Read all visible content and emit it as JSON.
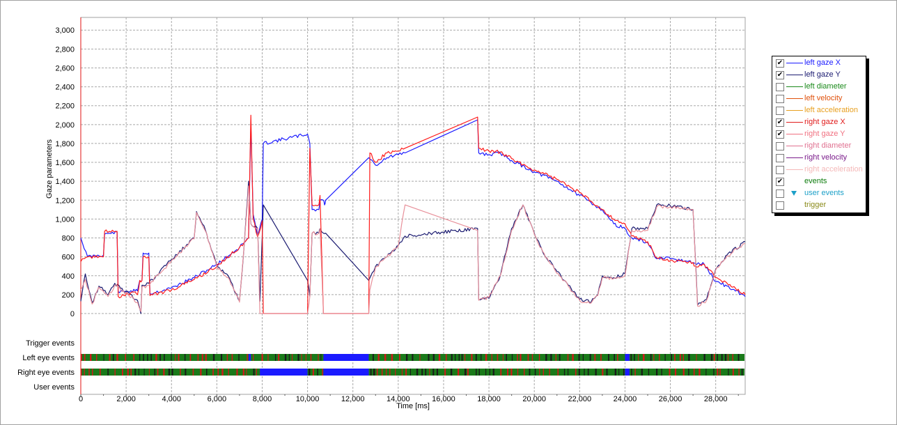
{
  "chart_data": {
    "type": "line",
    "xlabel": "Time [ms]",
    "ylabel": "Gaze parameters",
    "xlim": [
      0,
      29300
    ],
    "ylim": [
      -100,
      3100
    ],
    "grid": true,
    "legend_position": "right",
    "x_ticks": [
      "0",
      "2,000",
      "4,000",
      "6,000",
      "8,000",
      "10,000",
      "12,000",
      "14,000",
      "16,000",
      "18,000",
      "20,000",
      "22,000",
      "24,000",
      "26,000",
      "28,000"
    ],
    "y_ticks": [
      "0",
      "200",
      "400",
      "600",
      "800",
      "1,000",
      "1,200",
      "1,400",
      "1,600",
      "1,800",
      "2,000",
      "2,200",
      "2,400",
      "2,600",
      "2,800",
      "3,000"
    ],
    "event_rows": [
      "Trigger events",
      "Left eye events",
      "Right eye events",
      "User events"
    ],
    "series": [
      {
        "name": "left gaze X",
        "color": "#1a1aff",
        "points": [
          [
            0,
            800
          ],
          [
            300,
            600
          ],
          [
            1000,
            620
          ],
          [
            1050,
            840
          ],
          [
            1600,
            860
          ],
          [
            1650,
            230
          ],
          [
            2400,
            240
          ],
          [
            2500,
            240
          ],
          [
            2600,
            350
          ],
          [
            2700,
            350
          ],
          [
            2750,
            640
          ],
          [
            3000,
            640
          ],
          [
            3050,
            210
          ],
          [
            4000,
            270
          ],
          [
            5000,
            380
          ],
          [
            6000,
            520
          ],
          [
            7000,
            700
          ],
          [
            7400,
            800
          ],
          [
            7500,
            2000
          ],
          [
            7600,
            1050
          ],
          [
            7800,
            820
          ],
          [
            8000,
            1000
          ],
          [
            8050,
            1800
          ],
          [
            10000,
            1900
          ],
          [
            10100,
            1800
          ],
          [
            10200,
            1100
          ],
          [
            10500,
            1100
          ],
          [
            10550,
            1200
          ],
          [
            10700,
            1200
          ],
          [
            10750,
            1150
          ],
          [
            10800,
            1200
          ],
          [
            12700,
            1650
          ],
          [
            13000,
            1570
          ],
          [
            13500,
            1650
          ],
          [
            14000,
            1680
          ],
          [
            14300,
            1700
          ],
          [
            17500,
            2050
          ],
          [
            17550,
            1700
          ],
          [
            18000,
            1680
          ],
          [
            18500,
            1700
          ],
          [
            19000,
            1620
          ],
          [
            20000,
            1500
          ],
          [
            21000,
            1400
          ],
          [
            22000,
            1250
          ],
          [
            23000,
            1100
          ],
          [
            23500,
            950
          ],
          [
            24000,
            900
          ],
          [
            24100,
            850
          ],
          [
            24300,
            800
          ],
          [
            25000,
            750
          ],
          [
            25400,
            580
          ],
          [
            26000,
            580
          ],
          [
            27000,
            540
          ],
          [
            27100,
            530
          ],
          [
            27500,
            520
          ],
          [
            28000,
            340
          ],
          [
            28500,
            290
          ],
          [
            29300,
            180
          ]
        ]
      },
      {
        "name": "left gaze Y",
        "color": "#1a1a70",
        "points": [
          [
            0,
            130
          ],
          [
            200,
            420
          ],
          [
            500,
            110
          ],
          [
            800,
            290
          ],
          [
            1200,
            200
          ],
          [
            1500,
            320
          ],
          [
            2500,
            140
          ],
          [
            2650,
            0
          ],
          [
            2700,
            300
          ],
          [
            3000,
            320
          ],
          [
            4000,
            570
          ],
          [
            5000,
            800
          ],
          [
            5100,
            1080
          ],
          [
            5500,
            880
          ],
          [
            6000,
            500
          ],
          [
            6500,
            400
          ],
          [
            7000,
            130
          ],
          [
            7200,
            700
          ],
          [
            7400,
            1400
          ],
          [
            7500,
            950
          ],
          [
            7800,
            900
          ],
          [
            7900,
            130
          ],
          [
            8050,
            1150
          ],
          [
            10000,
            350
          ],
          [
            10100,
            180
          ],
          [
            10200,
            850
          ],
          [
            10500,
            850
          ],
          [
            10550,
            900
          ],
          [
            10700,
            850
          ],
          [
            10800,
            850
          ],
          [
            12700,
            350
          ],
          [
            13000,
            500
          ],
          [
            13500,
            600
          ],
          [
            14000,
            720
          ],
          [
            14300,
            820
          ],
          [
            17500,
            900
          ],
          [
            17550,
            150
          ],
          [
            18000,
            160
          ],
          [
            18500,
            400
          ],
          [
            19000,
            900
          ],
          [
            19500,
            1150
          ],
          [
            20000,
            850
          ],
          [
            20500,
            600
          ],
          [
            21500,
            300
          ],
          [
            22000,
            150
          ],
          [
            22500,
            120
          ],
          [
            22800,
            200
          ],
          [
            23000,
            400
          ],
          [
            23500,
            380
          ],
          [
            24000,
            420
          ],
          [
            24300,
            900
          ],
          [
            25000,
            900
          ],
          [
            25400,
            1150
          ],
          [
            26000,
            1140
          ],
          [
            27000,
            1100
          ],
          [
            27200,
            90
          ],
          [
            27600,
            150
          ],
          [
            28000,
            470
          ],
          [
            28500,
            620
          ],
          [
            29300,
            760
          ]
        ]
      },
      {
        "name": "right gaze X",
        "color": "#ff1a1a",
        "points": [
          [
            0,
            550
          ],
          [
            300,
            600
          ],
          [
            1000,
            600
          ],
          [
            1050,
            870
          ],
          [
            1600,
            870
          ],
          [
            1650,
            180
          ],
          [
            2400,
            230
          ],
          [
            2500,
            200
          ],
          [
            2600,
            350
          ],
          [
            2700,
            350
          ],
          [
            2750,
            600
          ],
          [
            3000,
            600
          ],
          [
            3050,
            190
          ],
          [
            4000,
            250
          ],
          [
            5000,
            360
          ],
          [
            6000,
            500
          ],
          [
            7000,
            700
          ],
          [
            7400,
            800
          ],
          [
            7500,
            2100
          ],
          [
            7600,
            1000
          ],
          [
            7800,
            810
          ],
          [
            8000,
            980
          ],
          [
            8050,
            0
          ],
          [
            10000,
            0
          ],
          [
            10100,
            1750
          ],
          [
            10200,
            1150
          ],
          [
            10500,
            1150
          ],
          [
            10550,
            1250
          ],
          [
            10700,
            0
          ],
          [
            12700,
            0
          ],
          [
            12750,
            1700
          ],
          [
            13000,
            1600
          ],
          [
            13500,
            1700
          ],
          [
            14000,
            1720
          ],
          [
            14300,
            1750
          ],
          [
            17500,
            2080
          ],
          [
            17550,
            1750
          ],
          [
            18000,
            1720
          ],
          [
            18500,
            1710
          ],
          [
            19000,
            1640
          ],
          [
            20000,
            1520
          ],
          [
            21000,
            1420
          ],
          [
            22000,
            1280
          ],
          [
            23000,
            1100
          ],
          [
            23500,
            1000
          ],
          [
            24000,
            950
          ],
          [
            24100,
            900
          ],
          [
            24300,
            820
          ],
          [
            25000,
            760
          ],
          [
            25400,
            590
          ],
          [
            26000,
            560
          ],
          [
            27000,
            540
          ],
          [
            27100,
            500
          ],
          [
            27500,
            520
          ],
          [
            28000,
            380
          ],
          [
            28500,
            320
          ],
          [
            29300,
            200
          ]
        ]
      },
      {
        "name": "right gaze Y",
        "color": "#e8909a",
        "points": [
          [
            0,
            250
          ],
          [
            200,
            360
          ],
          [
            500,
            100
          ],
          [
            800,
            280
          ],
          [
            1200,
            180
          ],
          [
            1500,
            300
          ],
          [
            2500,
            120
          ],
          [
            2650,
            20
          ],
          [
            2700,
            280
          ],
          [
            3000,
            300
          ],
          [
            4000,
            560
          ],
          [
            5000,
            790
          ],
          [
            5100,
            1070
          ],
          [
            5500,
            870
          ],
          [
            6000,
            490
          ],
          [
            6500,
            380
          ],
          [
            7000,
            120
          ],
          [
            7200,
            700
          ],
          [
            7400,
            1350
          ],
          [
            7500,
            950
          ],
          [
            7800,
            900
          ],
          [
            7900,
            0
          ],
          [
            10000,
            0
          ],
          [
            10100,
            180
          ],
          [
            10200,
            850
          ],
          [
            10500,
            850
          ],
          [
            10550,
            900
          ],
          [
            10700,
            0
          ],
          [
            12700,
            0
          ],
          [
            12750,
            250
          ],
          [
            13000,
            490
          ],
          [
            13500,
            600
          ],
          [
            14000,
            710
          ],
          [
            14300,
            1150
          ],
          [
            17500,
            880
          ],
          [
            17550,
            140
          ],
          [
            18000,
            170
          ],
          [
            18500,
            400
          ],
          [
            19000,
            880
          ],
          [
            19500,
            1150
          ],
          [
            20000,
            840
          ],
          [
            20500,
            590
          ],
          [
            21500,
            290
          ],
          [
            22000,
            140
          ],
          [
            22500,
            110
          ],
          [
            22800,
            190
          ],
          [
            23000,
            380
          ],
          [
            23500,
            370
          ],
          [
            24000,
            400
          ],
          [
            24300,
            880
          ],
          [
            25000,
            880
          ],
          [
            25400,
            1130
          ],
          [
            26000,
            1130
          ],
          [
            27000,
            1100
          ],
          [
            27200,
            80
          ],
          [
            27600,
            140
          ],
          [
            28000,
            460
          ],
          [
            28500,
            610
          ],
          [
            29300,
            740
          ]
        ]
      }
    ]
  },
  "legend": {
    "items": [
      {
        "label": "left gaze X",
        "color": "#1a1aff",
        "checked": true,
        "marker": "line"
      },
      {
        "label": "left gaze Y",
        "color": "#1a1a70",
        "checked": true,
        "marker": "line"
      },
      {
        "label": "left diameter",
        "color": "#1a8a1a",
        "checked": false,
        "marker": "line"
      },
      {
        "label": "left velocity",
        "color": "#e0500a",
        "checked": false,
        "marker": "line"
      },
      {
        "label": "left acceleration",
        "color": "#e8a020",
        "checked": false,
        "marker": "line"
      },
      {
        "label": "right gaze X",
        "color": "#e01a1a",
        "checked": true,
        "marker": "line"
      },
      {
        "label": "right gaze Y",
        "color": "#f07080",
        "checked": true,
        "marker": "line"
      },
      {
        "label": "right diameter",
        "color": "#e07090",
        "checked": false,
        "marker": "line"
      },
      {
        "label": "right velocity",
        "color": "#7a1a8a",
        "checked": false,
        "marker": "line"
      },
      {
        "label": "right acceleration",
        "color": "#f4b8b8",
        "checked": false,
        "marker": "line"
      },
      {
        "label": "events",
        "color": "#0a7a0a",
        "checked": true,
        "marker": "none"
      },
      {
        "label": "user events",
        "color": "#1ca0c8",
        "checked": false,
        "marker": "triangle"
      },
      {
        "label": "trigger",
        "color": "#8a8a1a",
        "checked": false,
        "marker": "none"
      }
    ]
  }
}
